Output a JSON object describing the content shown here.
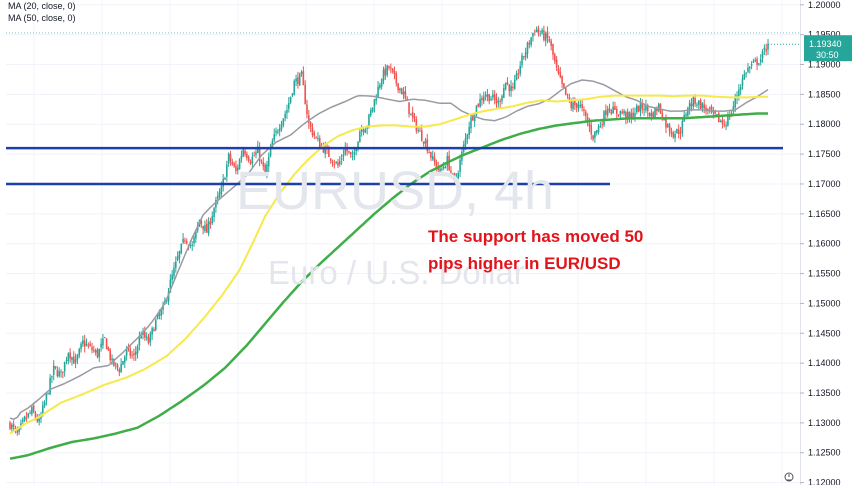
{
  "chart_data": {
    "type": "candlestick",
    "symbol": "EURUSD",
    "interval": "4h",
    "watermark_line1": "EURUSD, 4h",
    "watermark_line2": "Euro / U.S. Dollar",
    "legend": [
      "MA (20, close, 0)",
      "MA (50, close, 0)"
    ],
    "price_tag": "1.19340",
    "countdown": "30:50",
    "annotation_line1": "The support has moved 50",
    "annotation_line2": "pips higher in EUR/USD",
    "annotation_color": "#e1141b",
    "ylim": [
      1.1196,
      1.2008
    ],
    "yticks": [
      "1.12000",
      "1.12500",
      "1.13000",
      "1.13500",
      "1.14000",
      "1.14500",
      "1.15000",
      "1.15500",
      "1.16000",
      "1.16500",
      "1.17000",
      "1.17500",
      "1.18000",
      "1.18500",
      "1.19000",
      "1.19500",
      "1.20000"
    ],
    "support_levels": [
      1.176,
      1.17
    ],
    "support_color": "#1f3fa8",
    "up_color": "#26a69a",
    "down_color": "#ef5350",
    "ma_series": [
      {
        "color": "#9a9aa3",
        "width": 1.5,
        "values": [
          [
            0,
            1.1308
          ],
          [
            3,
            1.1305
          ],
          [
            6,
            1.1318
          ],
          [
            10,
            1.1325
          ],
          [
            16,
            1.134
          ],
          [
            22,
            1.1356
          ],
          [
            30,
            1.1366
          ],
          [
            38,
            1.1378
          ],
          [
            46,
            1.1392
          ],
          [
            54,
            1.1396
          ],
          [
            62,
            1.1418
          ],
          [
            70,
            1.1442
          ],
          [
            77,
            1.1465
          ],
          [
            85,
            1.15
          ],
          [
            92,
            1.1552
          ],
          [
            100,
            1.161
          ],
          [
            106,
            1.1648
          ],
          [
            111,
            1.1664
          ],
          [
            117,
            1.168
          ],
          [
            124,
            1.1698
          ],
          [
            131,
            1.1718
          ],
          [
            138,
            1.1748
          ],
          [
            146,
            1.177
          ],
          [
            154,
            1.1782
          ],
          [
            161,
            1.18
          ],
          [
            169,
            1.1817
          ],
          [
            176,
            1.1828
          ],
          [
            184,
            1.1838
          ],
          [
            191,
            1.1848
          ],
          [
            199,
            1.1847
          ],
          [
            207,
            1.1842
          ],
          [
            214,
            1.1838
          ],
          [
            221,
            1.1842
          ],
          [
            228,
            1.184
          ],
          [
            236,
            1.1835
          ],
          [
            242,
            1.1835
          ],
          [
            248,
            1.1822
          ],
          [
            254,
            1.1814
          ],
          [
            260,
            1.1808
          ],
          [
            266,
            1.1806
          ],
          [
            272,
            1.1812
          ],
          [
            278,
            1.1822
          ],
          [
            284,
            1.183
          ],
          [
            290,
            1.1834
          ],
          [
            296,
            1.1842
          ],
          [
            302,
            1.1856
          ],
          [
            308,
            1.1868
          ],
          [
            314,
            1.1874
          ],
          [
            320,
            1.1872
          ],
          [
            326,
            1.1866
          ],
          [
            332,
            1.1856
          ],
          [
            338,
            1.1846
          ],
          [
            344,
            1.184
          ],
          [
            350,
            1.183
          ],
          [
            356,
            1.1826
          ],
          [
            362,
            1.1822
          ],
          [
            368,
            1.1822
          ],
          [
            374,
            1.1824
          ],
          [
            380,
            1.1824
          ],
          [
            386,
            1.1822
          ],
          [
            392,
            1.1822
          ],
          [
            398,
            1.1824
          ],
          [
            404,
            1.1836
          ],
          [
            410,
            1.1846
          ],
          [
            416,
            1.1858
          ]
        ]
      },
      {
        "color": "#f7e94a",
        "width": 2,
        "values": [
          [
            0,
            1.1282
          ],
          [
            8,
            1.1298
          ],
          [
            16,
            1.131
          ],
          [
            28,
            1.1334
          ],
          [
            40,
            1.1348
          ],
          [
            52,
            1.1364
          ],
          [
            64,
            1.1376
          ],
          [
            74,
            1.139
          ],
          [
            86,
            1.1412
          ],
          [
            96,
            1.144
          ],
          [
            106,
            1.1474
          ],
          [
            116,
            1.1512
          ],
          [
            126,
            1.1556
          ],
          [
            134,
            1.1606
          ],
          [
            140,
            1.1646
          ],
          [
            148,
            1.1684
          ],
          [
            156,
            1.1716
          ],
          [
            164,
            1.1742
          ],
          [
            172,
            1.1764
          ],
          [
            180,
            1.178
          ],
          [
            188,
            1.179
          ],
          [
            196,
            1.1796
          ],
          [
            204,
            1.1798
          ],
          [
            212,
            1.1798
          ],
          [
            220,
            1.1796
          ],
          [
            228,
            1.1796
          ],
          [
            236,
            1.18
          ],
          [
            244,
            1.1808
          ],
          [
            252,
            1.1816
          ],
          [
            260,
            1.1822
          ],
          [
            268,
            1.1826
          ],
          [
            276,
            1.183
          ],
          [
            284,
            1.1836
          ],
          [
            292,
            1.184
          ],
          [
            300,
            1.1838
          ],
          [
            308,
            1.184
          ],
          [
            316,
            1.1842
          ],
          [
            324,
            1.1846
          ],
          [
            332,
            1.1848
          ],
          [
            340,
            1.1848
          ],
          [
            348,
            1.1848
          ],
          [
            356,
            1.1848
          ],
          [
            364,
            1.1847
          ],
          [
            372,
            1.1848
          ],
          [
            380,
            1.1848
          ],
          [
            388,
            1.1846
          ],
          [
            396,
            1.1845
          ],
          [
            404,
            1.1845
          ],
          [
            412,
            1.1846
          ],
          [
            416,
            1.1846
          ]
        ]
      },
      {
        "color": "#3fae49",
        "width": 2.5,
        "values": [
          [
            0,
            1.124
          ],
          [
            10,
            1.1246
          ],
          [
            22,
            1.1258
          ],
          [
            34,
            1.1268
          ],
          [
            46,
            1.1274
          ],
          [
            58,
            1.1282
          ],
          [
            70,
            1.1292
          ],
          [
            82,
            1.1312
          ],
          [
            94,
            1.1336
          ],
          [
            106,
            1.1362
          ],
          [
            118,
            1.1392
          ],
          [
            130,
            1.143
          ],
          [
            140,
            1.1466
          ],
          [
            150,
            1.1502
          ],
          [
            160,
            1.1536
          ],
          [
            170,
            1.1566
          ],
          [
            180,
            1.1594
          ],
          [
            190,
            1.1622
          ],
          [
            200,
            1.165
          ],
          [
            210,
            1.1676
          ],
          [
            220,
            1.17
          ],
          [
            230,
            1.172
          ],
          [
            240,
            1.1736
          ],
          [
            250,
            1.175
          ],
          [
            260,
            1.1762
          ],
          [
            270,
            1.1774
          ],
          [
            280,
            1.1784
          ],
          [
            290,
            1.1792
          ],
          [
            300,
            1.1798
          ],
          [
            310,
            1.1802
          ],
          [
            320,
            1.1806
          ],
          [
            330,
            1.1808
          ],
          [
            340,
            1.181
          ],
          [
            350,
            1.181
          ],
          [
            360,
            1.181
          ],
          [
            370,
            1.181
          ],
          [
            380,
            1.1812
          ],
          [
            390,
            1.1814
          ],
          [
            400,
            1.1816
          ],
          [
            410,
            1.1818
          ],
          [
            416,
            1.1818
          ]
        ]
      }
    ],
    "anchors": [
      [
        0,
        1.1298
      ],
      [
        4,
        1.128
      ],
      [
        8,
        1.1305
      ],
      [
        12,
        1.132
      ],
      [
        16,
        1.13
      ],
      [
        20,
        1.1345
      ],
      [
        24,
        1.139
      ],
      [
        28,
        1.138
      ],
      [
        32,
        1.142
      ],
      [
        36,
        1.14
      ],
      [
        40,
        1.1435
      ],
      [
        44,
        1.1425
      ],
      [
        48,
        1.1415
      ],
      [
        52,
        1.144
      ],
      [
        56,
        1.14
      ],
      [
        60,
        1.139
      ],
      [
        64,
        1.142
      ],
      [
        68,
        1.141
      ],
      [
        72,
        1.145
      ],
      [
        76,
        1.1435
      ],
      [
        80,
        1.147
      ],
      [
        84,
        1.149
      ],
      [
        88,
        1.1535
      ],
      [
        92,
        1.1575
      ],
      [
        96,
        1.161
      ],
      [
        100,
        1.1595
      ],
      [
        104,
        1.164
      ],
      [
        108,
        1.162
      ],
      [
        112,
        1.166
      ],
      [
        116,
        1.169
      ],
      [
        120,
        1.1745
      ],
      [
        124,
        1.172
      ],
      [
        128,
        1.176
      ],
      [
        132,
        1.174
      ],
      [
        136,
        1.1755
      ],
      [
        140,
        1.1715
      ],
      [
        144,
        1.177
      ],
      [
        148,
        1.18
      ],
      [
        152,
        1.1825
      ],
      [
        156,
        1.187
      ],
      [
        160,
        1.188
      ],
      [
        164,
        1.18
      ],
      [
        168,
        1.1775
      ],
      [
        172,
        1.176
      ],
      [
        176,
        1.1745
      ],
      [
        180,
        1.173
      ],
      [
        184,
        1.176
      ],
      [
        188,
        1.174
      ],
      [
        192,
        1.179
      ],
      [
        196,
        1.18
      ],
      [
        200,
        1.184
      ],
      [
        204,
        1.188
      ],
      [
        208,
        1.1895
      ],
      [
        212,
        1.187
      ],
      [
        216,
        1.185
      ],
      [
        220,
        1.1815
      ],
      [
        224,
        1.179
      ],
      [
        228,
        1.177
      ],
      [
        232,
        1.174
      ],
      [
        236,
        1.172
      ],
      [
        240,
        1.174
      ],
      [
        244,
        1.17
      ],
      [
        248,
        1.175
      ],
      [
        252,
        1.18
      ],
      [
        256,
        1.183
      ],
      [
        260,
        1.185
      ],
      [
        264,
        1.1845
      ],
      [
        268,
        1.1835
      ],
      [
        272,
        1.187
      ],
      [
        276,
        1.1855
      ],
      [
        280,
        1.19
      ],
      [
        284,
        1.193
      ],
      [
        288,
        1.196
      ],
      [
        292,
        1.195
      ],
      [
        296,
        1.194
      ],
      [
        300,
        1.189
      ],
      [
        304,
        1.1855
      ],
      [
        308,
        1.183
      ],
      [
        312,
        1.1835
      ],
      [
        316,
        1.181
      ],
      [
        320,
        1.178
      ],
      [
        324,
        1.18
      ],
      [
        328,
        1.183
      ],
      [
        332,
        1.182
      ],
      [
        336,
        1.182
      ],
      [
        340,
        1.181
      ],
      [
        344,
        1.1825
      ],
      [
        348,
        1.183
      ],
      [
        352,
        1.1815
      ],
      [
        356,
        1.183
      ],
      [
        360,
        1.18
      ],
      [
        364,
        1.1785
      ],
      [
        368,
        1.179
      ],
      [
        372,
        1.183
      ],
      [
        376,
        1.184
      ],
      [
        380,
        1.183
      ],
      [
        384,
        1.182
      ],
      [
        388,
        1.181
      ],
      [
        392,
        1.18
      ],
      [
        396,
        1.182
      ],
      [
        400,
        1.186
      ],
      [
        404,
        1.189
      ],
      [
        408,
        1.19
      ],
      [
        412,
        1.191
      ],
      [
        416,
        1.1934
      ]
    ]
  }
}
